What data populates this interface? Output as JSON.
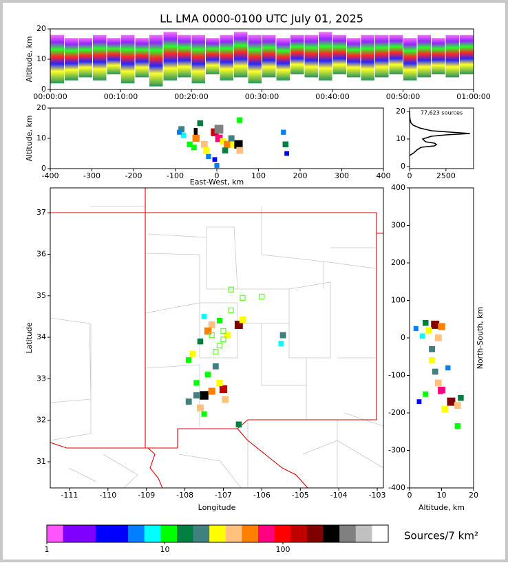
{
  "chart_data": [
    {
      "type": "range",
      "title": "LL LMA 0000-0100 UTC July 01, 2025",
      "ylabel": "Altitude, km",
      "xlim": [
        0,
        60
      ],
      "xticks": [
        {
          "value": 0,
          "label": "00:00:00"
        },
        {
          "value": 10,
          "label": "00:10:00"
        },
        {
          "value": 20,
          "label": "00:20:00"
        },
        {
          "value": 30,
          "label": "00:30:00"
        },
        {
          "value": 40,
          "label": "00:40:00"
        },
        {
          "value": 50,
          "label": "00:50:00"
        },
        {
          "value": 60,
          "label": "01:00:00"
        }
      ],
      "ylim": [
        0,
        20
      ],
      "yticks": [
        0,
        10,
        20
      ],
      "x": [
        1,
        3,
        5,
        7,
        9,
        11,
        13,
        15,
        17,
        19,
        21,
        23,
        25,
        27,
        29,
        31,
        33,
        35,
        37,
        39,
        41,
        43,
        45,
        47,
        49,
        51,
        53,
        55,
        57,
        59
      ],
      "low": [
        2,
        3,
        4,
        3,
        5,
        2,
        4,
        1,
        3,
        4,
        2,
        5,
        3,
        4,
        2,
        4,
        3,
        5,
        4,
        3,
        5,
        4,
        3,
        4,
        5,
        3,
        4,
        5,
        4,
        5
      ],
      "high": [
        18,
        17,
        17,
        18,
        17,
        18,
        17,
        18,
        19,
        18,
        18,
        17,
        18,
        19,
        18,
        18,
        17,
        18,
        18,
        19,
        18,
        17,
        18,
        18,
        18,
        17,
        18,
        17,
        18,
        18
      ]
    },
    {
      "type": "density",
      "xlabel": "East-West, km",
      "ylabel": "Altitude, km",
      "xlim": [
        -400,
        400
      ],
      "xticks": [
        -400,
        -300,
        -200,
        -100,
        0,
        100,
        200,
        300,
        400
      ],
      "ylim": [
        0,
        20
      ],
      "yticks": [
        0,
        10,
        20
      ],
      "x": [
        -85,
        -80,
        -90,
        -45,
        -35,
        -50,
        -30,
        -40,
        -20,
        -55,
        -5,
        5,
        5,
        15,
        25,
        20,
        -5,
        0,
        40,
        52,
        55,
        55,
        160,
        165,
        168,
        -65,
        -25,
        35
      ],
      "y": [
        13,
        11,
        12,
        12,
        12,
        10,
        8,
        15,
        4,
        7,
        12,
        13,
        10,
        9,
        8,
        6,
        3,
        1,
        8,
        8,
        6,
        16,
        12,
        8,
        5,
        8,
        6,
        10
      ],
      "values": [
        20,
        8,
        5,
        300,
        700,
        60,
        40,
        15,
        6,
        10,
        120,
        400,
        80,
        30,
        50,
        15,
        4,
        5,
        30,
        250,
        40,
        12,
        6,
        15,
        4,
        12,
        25,
        20
      ]
    },
    {
      "type": "line",
      "annotation": "77,623 sources",
      "color": "#000000",
      "xlim": [
        0,
        4400
      ],
      "xticks": [
        0,
        2500
      ],
      "ylim": [
        -0.75,
        21.25
      ],
      "yticks": [
        0,
        10,
        20
      ],
      "x": [
        0,
        300,
        500,
        800,
        1700,
        1850,
        1700,
        1100,
        900,
        1500,
        2500,
        4150,
        2800,
        1500,
        700,
        250,
        80,
        40,
        15,
        5
      ],
      "y": [
        4,
        5,
        6,
        7,
        7.5,
        8,
        8.5,
        9,
        10,
        11,
        11.5,
        12,
        12.5,
        13,
        14,
        15,
        16,
        17,
        18,
        20
      ]
    },
    {
      "type": "density",
      "xlabel": "Longitude",
      "ylabel": "Latitude",
      "xlim": [
        -111.5,
        -102.84
      ],
      "xticks": [
        -111,
        -110,
        -109,
        -108,
        -107,
        -106,
        -105,
        -104,
        -103
      ],
      "ylim": [
        30.37,
        37.6
      ],
      "yticks": [
        31,
        32,
        33,
        34,
        35,
        36,
        37
      ],
      "x": [
        -106.6,
        -106.5,
        -107.3,
        -107.4,
        -107.5,
        -107.1,
        -106.9,
        -107.6,
        -107.8,
        -107.9,
        -107.2,
        -107.4,
        -107.5,
        -107.3,
        -107.0,
        -106.95,
        -107.1,
        -107.7,
        -107.6,
        -107.5,
        -107.9,
        -106.6,
        -105.45,
        -105.5,
        -107.7
      ],
      "y": [
        34.3,
        34.42,
        34.3,
        34.15,
        34.5,
        34.4,
        34.05,
        33.9,
        33.6,
        33.45,
        33.3,
        33.1,
        32.6,
        32.7,
        32.75,
        32.5,
        32.9,
        32.9,
        32.3,
        32.15,
        32.45,
        31.9,
        34.05,
        33.85,
        32.6
      ],
      "values": [
        200,
        30,
        40,
        60,
        8,
        10,
        30,
        15,
        25,
        12,
        20,
        12,
        300,
        50,
        120,
        40,
        25,
        12,
        40,
        10,
        20,
        15,
        20,
        8,
        20
      ],
      "markers": {
        "color": "#66ff33",
        "x": [
          -106.8,
          -106.5,
          -106.0,
          -106.8,
          -107.0,
          -107.0,
          -107.1,
          -107.2,
          -107.3
        ],
        "y": [
          35.15,
          34.95,
          34.98,
          34.65,
          34.15,
          33.95,
          33.8,
          33.65,
          34.05
        ]
      }
    },
    {
      "type": "density",
      "xlabel": "Altitude, km",
      "ylabel": "North-South, km",
      "xlim": [
        0,
        20
      ],
      "xticks": [
        0,
        10,
        20
      ],
      "ylim": [
        -400,
        400
      ],
      "yticks": [
        -400,
        -300,
        -200,
        -100,
        0,
        100,
        200,
        300,
        400
      ],
      "x": [
        2,
        5,
        8,
        10,
        6,
        9,
        4,
        7,
        7,
        8,
        9,
        10,
        12,
        13,
        15,
        16,
        5,
        11,
        15,
        3,
        12
      ],
      "y": [
        25,
        40,
        35,
        30,
        20,
        0,
        5,
        -30,
        -60,
        -90,
        -120,
        -140,
        -160,
        -170,
        -180,
        -160,
        -150,
        -190,
        -235,
        -170,
        -80
      ],
      "values": [
        5,
        15,
        200,
        60,
        25,
        40,
        8,
        20,
        25,
        18,
        35,
        80,
        700,
        200,
        40,
        15,
        10,
        30,
        12,
        4,
        6
      ]
    },
    {
      "type": "colorbar",
      "label": "Sources/7 km²",
      "log": true,
      "xlim": [
        1,
        780
      ],
      "xticks": [
        1,
        10,
        100
      ],
      "colors": [
        "#ff55ff",
        "#8000ff",
        "#8000ff",
        "#0000ff",
        "#0000ff",
        "#0080ff",
        "#00ffff",
        "#00ff00",
        "#008040",
        "#408080",
        "#ffff00",
        "#ffc080",
        "#ff8000",
        "#ff0080",
        "#ff0000",
        "#c00000",
        "#800000",
        "#000000",
        "#808080",
        "#c0c0c0",
        "#ffffff"
      ]
    }
  ]
}
